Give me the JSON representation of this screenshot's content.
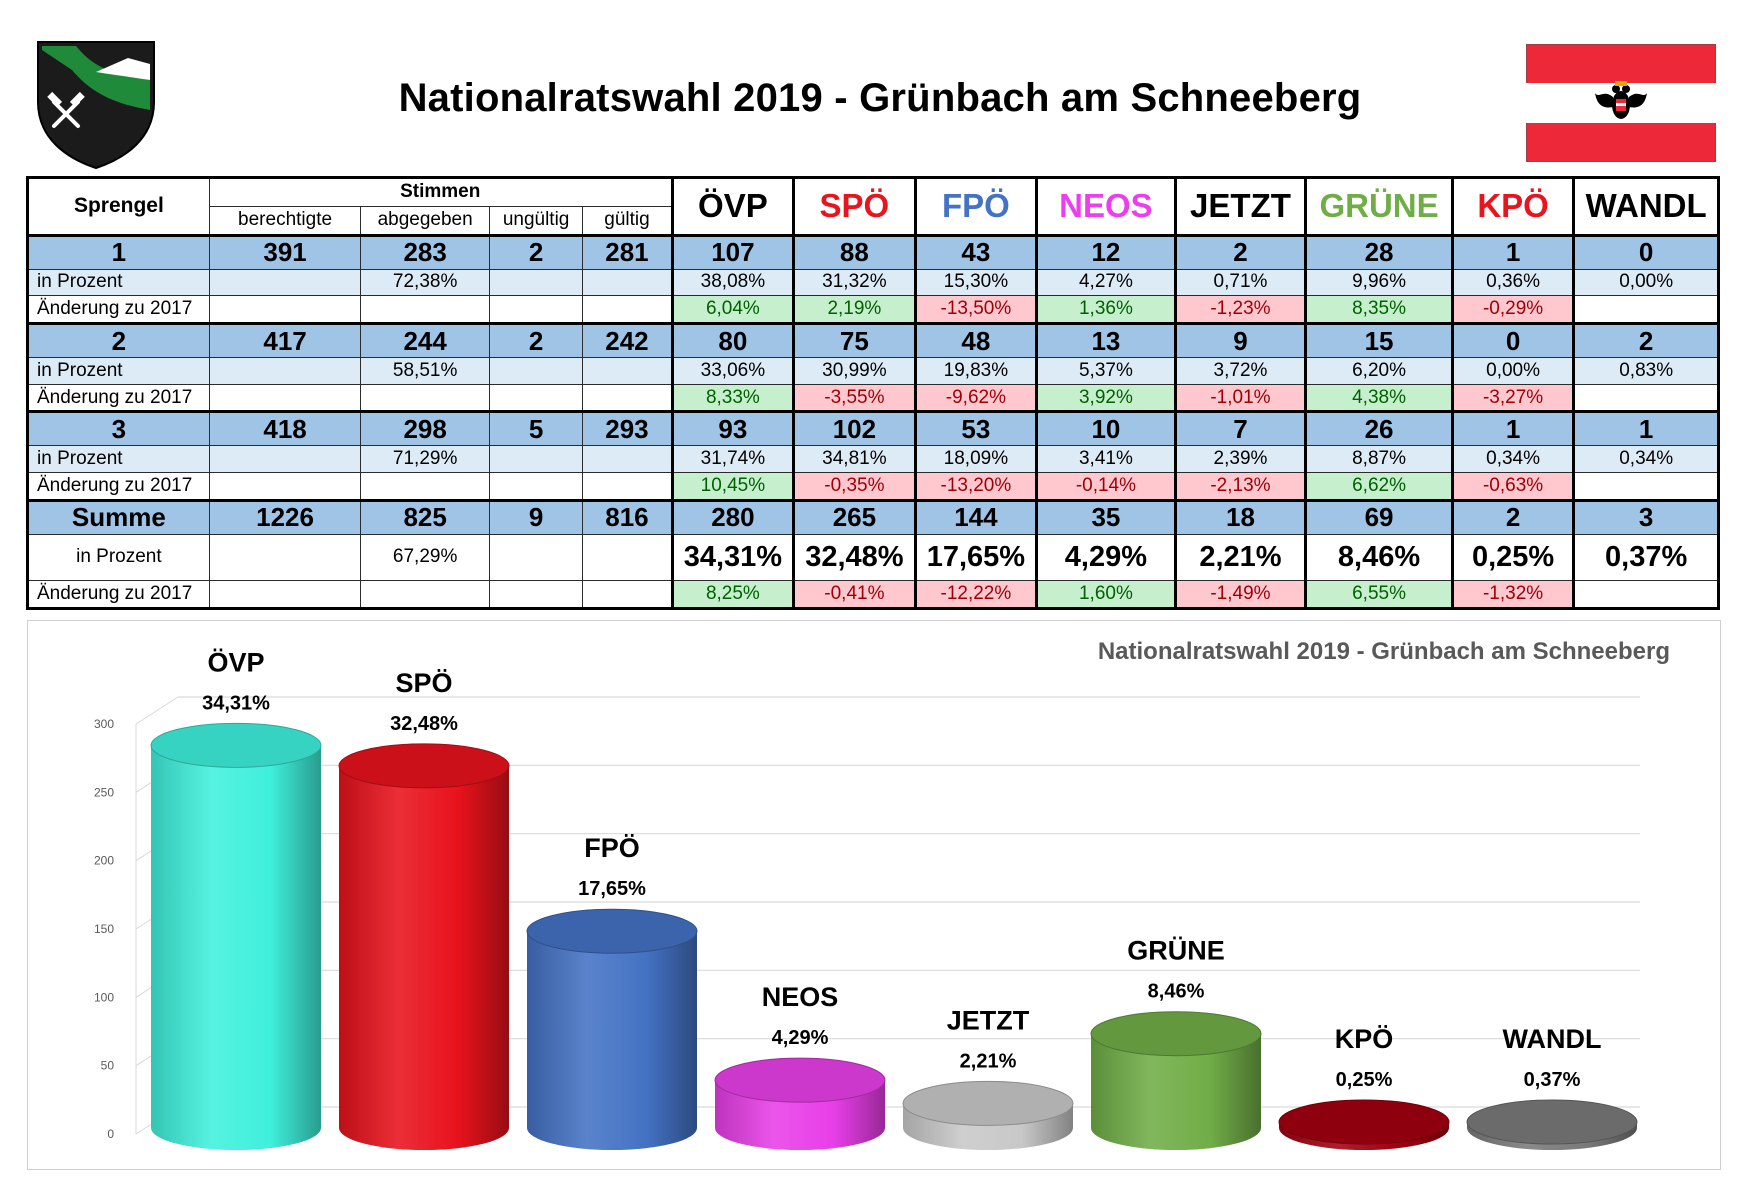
{
  "title": "Nationalratswahl 2019 - Grünbach am Schneeberg",
  "headers": {
    "sprengel": "Sprengel",
    "stimmen": "Stimmen",
    "berechtigte": "berechtigte",
    "abgegeben": "abgegeben",
    "ungueltig": "ungültig",
    "gueltig": "gültig",
    "parties": [
      "ÖVP",
      "SPÖ",
      "FPÖ",
      "NEOS",
      "JETZT",
      "GRÜNE",
      "KPÖ",
      "WANDL"
    ]
  },
  "party_colors": [
    "#000000",
    "#e8141e",
    "#4472c4",
    "#ee3dee",
    "#000000",
    "#70ad47",
    "#e8141e",
    "#000000"
  ],
  "row_labels": {
    "pct": "in Prozent",
    "chg": "Änderung zu 2017"
  },
  "districts": [
    {
      "name": "1",
      "berechtigte": "391",
      "abgegeben": "283",
      "ungueltig": "2",
      "gueltig": "281",
      "abgegeben_pct": "72,38%",
      "votes": [
        "107",
        "88",
        "43",
        "12",
        "2",
        "28",
        "1",
        "0"
      ],
      "pct": [
        "38,08%",
        "31,32%",
        "15,30%",
        "4,27%",
        "0,71%",
        "9,96%",
        "0,36%",
        "0,00%"
      ],
      "chg": [
        "6,04%",
        "2,19%",
        "-13,50%",
        "1,36%",
        "-1,23%",
        "8,35%",
        "-0,29%",
        ""
      ]
    },
    {
      "name": "2",
      "berechtigte": "417",
      "abgegeben": "244",
      "ungueltig": "2",
      "gueltig": "242",
      "abgegeben_pct": "58,51%",
      "votes": [
        "80",
        "75",
        "48",
        "13",
        "9",
        "15",
        "0",
        "2"
      ],
      "pct": [
        "33,06%",
        "30,99%",
        "19,83%",
        "5,37%",
        "3,72%",
        "6,20%",
        "0,00%",
        "0,83%"
      ],
      "chg": [
        "8,33%",
        "-3,55%",
        "-9,62%",
        "3,92%",
        "-1,01%",
        "4,38%",
        "-3,27%",
        ""
      ]
    },
    {
      "name": "3",
      "berechtigte": "418",
      "abgegeben": "298",
      "ungueltig": "5",
      "gueltig": "293",
      "abgegeben_pct": "71,29%",
      "votes": [
        "93",
        "102",
        "53",
        "10",
        "7",
        "26",
        "1",
        "1"
      ],
      "pct": [
        "31,74%",
        "34,81%",
        "18,09%",
        "3,41%",
        "2,39%",
        "8,87%",
        "0,34%",
        "0,34%"
      ],
      "chg": [
        "10,45%",
        "-0,35%",
        "-13,20%",
        "-0,14%",
        "-2,13%",
        "6,62%",
        "-0,63%",
        ""
      ]
    }
  ],
  "total": {
    "name": "Summe",
    "berechtigte": "1226",
    "abgegeben": "825",
    "ungueltig": "9",
    "gueltig": "816",
    "abgegeben_pct": "67,29%",
    "votes": [
      "280",
      "265",
      "144",
      "35",
      "18",
      "69",
      "2",
      "3"
    ],
    "pct": [
      "34,31%",
      "32,48%",
      "17,65%",
      "4,29%",
      "2,21%",
      "8,46%",
      "0,25%",
      "0,37%"
    ],
    "chg": [
      "8,25%",
      "-0,41%",
      "-12,22%",
      "1,60%",
      "-1,49%",
      "6,55%",
      "-1,32%",
      ""
    ]
  },
  "chart_data": {
    "type": "bar",
    "title": "Nationalratswahl 2019 - Grünbach am Schneeberg",
    "categories": [
      "ÖVP",
      "SPÖ",
      "FPÖ",
      "NEOS",
      "JETZT",
      "GRÜNE",
      "KPÖ",
      "WANDL"
    ],
    "values": [
      280,
      265,
      144,
      35,
      18,
      69,
      2,
      3
    ],
    "data_labels": [
      "34,31%",
      "32,48%",
      "17,65%",
      "4,29%",
      "2,21%",
      "8,46%",
      "0,25%",
      "0,37%"
    ],
    "colors": [
      "#3ff0dc",
      "#e8121c",
      "#4472c4",
      "#e83ee8",
      "#c8c8c8",
      "#70ad47",
      "#a30010",
      "#7a7a7a"
    ],
    "yticks": [
      "0",
      "50",
      "100",
      "150",
      "200",
      "250",
      "300"
    ],
    "ylim": [
      0,
      300
    ],
    "grid": true,
    "style": "3d-cylinder"
  }
}
